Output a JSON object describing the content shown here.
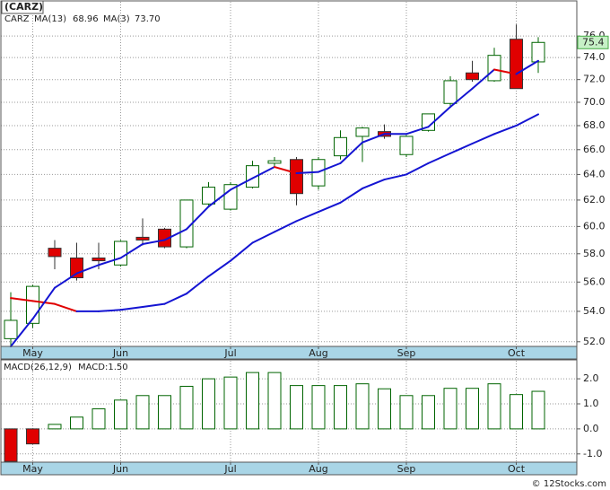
{
  "title": "(CARZ)",
  "footer": "© 12Stocks.com",
  "chart_data": [
    {
      "type": "candlestick",
      "symbol": "CARZ",
      "categories": [
        null,
        "May",
        null,
        null,
        null,
        "Jun",
        null,
        null,
        null,
        null,
        "Jul",
        null,
        null,
        null,
        "Aug",
        null,
        null,
        null,
        "Sep",
        null,
        null,
        null,
        null,
        "Oct",
        null
      ],
      "open": [
        52.2,
        53.2,
        58.4,
        57.7,
        57.7,
        57.2,
        59.2,
        59.8,
        58.5,
        61.7,
        61.3,
        63.0,
        64.9,
        65.2,
        63.1,
        65.5,
        67.1,
        67.5,
        65.6,
        67.6,
        69.9,
        72.6,
        71.9,
        75.7,
        73.6
      ],
      "high": [
        55.3,
        55.8,
        59.0,
        58.8,
        58.8,
        59.0,
        60.6,
        59.9,
        62.0,
        63.4,
        63.4,
        65.1,
        65.4,
        65.4,
        65.4,
        67.6,
        67.9,
        68.1,
        67.2,
        69.0,
        72.3,
        73.7,
        74.9,
        77.1,
        75.9
      ],
      "low": [
        51.7,
        52.9,
        56.9,
        56.1,
        56.9,
        57.1,
        58.6,
        58.4,
        58.4,
        61.6,
        61.2,
        62.9,
        64.6,
        61.6,
        62.8,
        65.2,
        65.0,
        66.9,
        65.4,
        67.5,
        69.7,
        71.8,
        71.8,
        71.2,
        72.6
      ],
      "close": [
        53.4,
        55.7,
        57.8,
        56.3,
        57.5,
        58.9,
        59.0,
        58.5,
        62.0,
        63.0,
        63.2,
        64.7,
        65.1,
        62.5,
        65.2,
        67.0,
        67.8,
        67.1,
        67.1,
        69.0,
        71.9,
        72.0,
        74.2,
        71.2,
        75.4
      ],
      "up_color": "#006400",
      "down_color": "#e00000",
      "last_price": 75.4,
      "series": [
        {
          "name": "MA(13)",
          "color": "#1414d2",
          "last": 68.96,
          "values": [
            54.9,
            54.7,
            54.5,
            54.0,
            54.0,
            54.1,
            54.3,
            54.5,
            55.2,
            56.4,
            57.5,
            58.8,
            59.6,
            60.4,
            61.1,
            61.8,
            62.9,
            63.6,
            64.0,
            64.9,
            65.7,
            66.5,
            67.3,
            68.0,
            68.96
          ]
        },
        {
          "name": "MA(3)",
          "color": "#1414d2",
          "last": {
            "value": 73.7,
            "label": "73.70"
          },
          "values": [
            51.7,
            53.5,
            55.6,
            56.6,
            57.2,
            57.7,
            58.7,
            59.0,
            59.8,
            61.5,
            62.8,
            63.7,
            64.6,
            64.1,
            64.2,
            64.9,
            66.6,
            67.3,
            67.3,
            67.9,
            69.6,
            71.2,
            72.9,
            72.5,
            73.7
          ]
        }
      ],
      "falling_color": "#e00000",
      "log_scale": true,
      "ylim": [
        51.7,
        79.3
      ],
      "yticks": [
        {
          "value": 52,
          "label": "52.0"
        },
        {
          "value": 54,
          "label": "54.0"
        },
        {
          "value": 56,
          "label": "56.0"
        },
        {
          "value": 58,
          "label": "58.0"
        },
        {
          "value": 60,
          "label": "60.0"
        },
        {
          "value": 62,
          "label": "62.0"
        },
        {
          "value": 64,
          "label": "64.0"
        },
        {
          "value": 66,
          "label": "66.0"
        },
        {
          "value": 68,
          "label": "68.0"
        },
        {
          "value": 70,
          "label": "70.0"
        },
        {
          "value": 72,
          "label": "72.0"
        },
        {
          "value": 74,
          "label": "74.0"
        },
        {
          "value": 76,
          "label": "76.0"
        }
      ],
      "grid": true
    },
    {
      "type": "bar",
      "title": "MACD(26,12,9)",
      "subtitle": "MACD:1.50",
      "categories": [
        null,
        "May",
        null,
        null,
        null,
        "Jun",
        null,
        null,
        null,
        null,
        "Jul",
        null,
        null,
        null,
        "Aug",
        null,
        null,
        null,
        "Sep",
        null,
        null,
        null,
        null,
        "Oct",
        null
      ],
      "values": [
        -1.3,
        -0.6,
        0.18,
        0.47,
        0.8,
        1.15,
        1.33,
        1.33,
        1.7,
        2.0,
        2.07,
        2.25,
        2.25,
        1.73,
        1.73,
        1.73,
        1.8,
        1.6,
        1.33,
        1.33,
        1.62,
        1.62,
        1.8,
        1.37,
        1.5
      ],
      "up_color": "#006400",
      "down_color": "#e00000",
      "ylim": [
        -1.33,
        2.72
      ],
      "yticks": [
        {
          "value": -1,
          "label": "-1.0"
        },
        {
          "value": 0,
          "label": "0.0"
        },
        {
          "value": 1,
          "label": "1.0"
        },
        {
          "value": 2,
          "label": "2.0"
        }
      ],
      "grid": true
    }
  ]
}
